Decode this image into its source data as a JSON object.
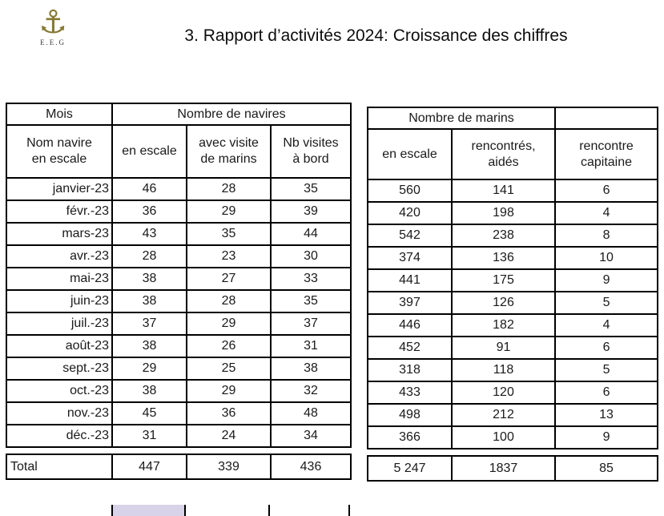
{
  "header": {
    "title": "3. Rapport d’activités 2024: Croissance des chiffres",
    "logo_text": "E.E.G",
    "anchor_glyph": "⚓"
  },
  "ships_table": {
    "corner_label": "Mois",
    "group_label": "Nombre de navires",
    "columns": [
      "Nom navire\nen escale",
      "en escale",
      "avec visite\nde marins",
      "Nb visites\nà bord"
    ],
    "rows": [
      [
        "janvier-23",
        "46",
        "28",
        "35"
      ],
      [
        "févr.-23",
        "36",
        "29",
        "39"
      ],
      [
        "mars-23",
        "43",
        "35",
        "44"
      ],
      [
        "avr.-23",
        "28",
        "23",
        "30"
      ],
      [
        "mai-23",
        "38",
        "27",
        "33"
      ],
      [
        "juin-23",
        "38",
        "28",
        "35"
      ],
      [
        "juil.-23",
        "37",
        "29",
        "37"
      ],
      [
        "août-23",
        "38",
        "26",
        "31"
      ],
      [
        "sept.-23",
        "29",
        "25",
        "38"
      ],
      [
        "oct.-23",
        "38",
        "29",
        "32"
      ],
      [
        "nov.-23",
        "45",
        "36",
        "48"
      ],
      [
        "déc.-23",
        "31",
        "24",
        "34"
      ]
    ],
    "totals": [
      [
        "Total",
        "447",
        "339",
        "436"
      ]
    ]
  },
  "sailors_table": {
    "group_label": "Nombre de marins",
    "empty_header": "",
    "columns": [
      "en escale",
      "rencontrés,\naidés",
      "rencontre\ncapitaine"
    ],
    "rows": [
      [
        "560",
        "141",
        "6"
      ],
      [
        "420",
        "198",
        "4"
      ],
      [
        "542",
        "238",
        "8"
      ],
      [
        "374",
        "136",
        "10"
      ],
      [
        "441",
        "175",
        "9"
      ],
      [
        "397",
        "126",
        "5"
      ],
      [
        "446",
        "182",
        "4"
      ],
      [
        "452",
        "91",
        "6"
      ],
      [
        "318",
        "118",
        "5"
      ],
      [
        "433",
        "120",
        "6"
      ],
      [
        "498",
        "212",
        "13"
      ],
      [
        "366",
        "100",
        "9"
      ]
    ],
    "totals": [
      [
        "5 247",
        "1837",
        "85"
      ]
    ]
  },
  "colors": {
    "border": "#000000",
    "text": "#1a1a1a",
    "logo_gold": "#867a33",
    "next_row_lavender": "#d8d3e8"
  }
}
